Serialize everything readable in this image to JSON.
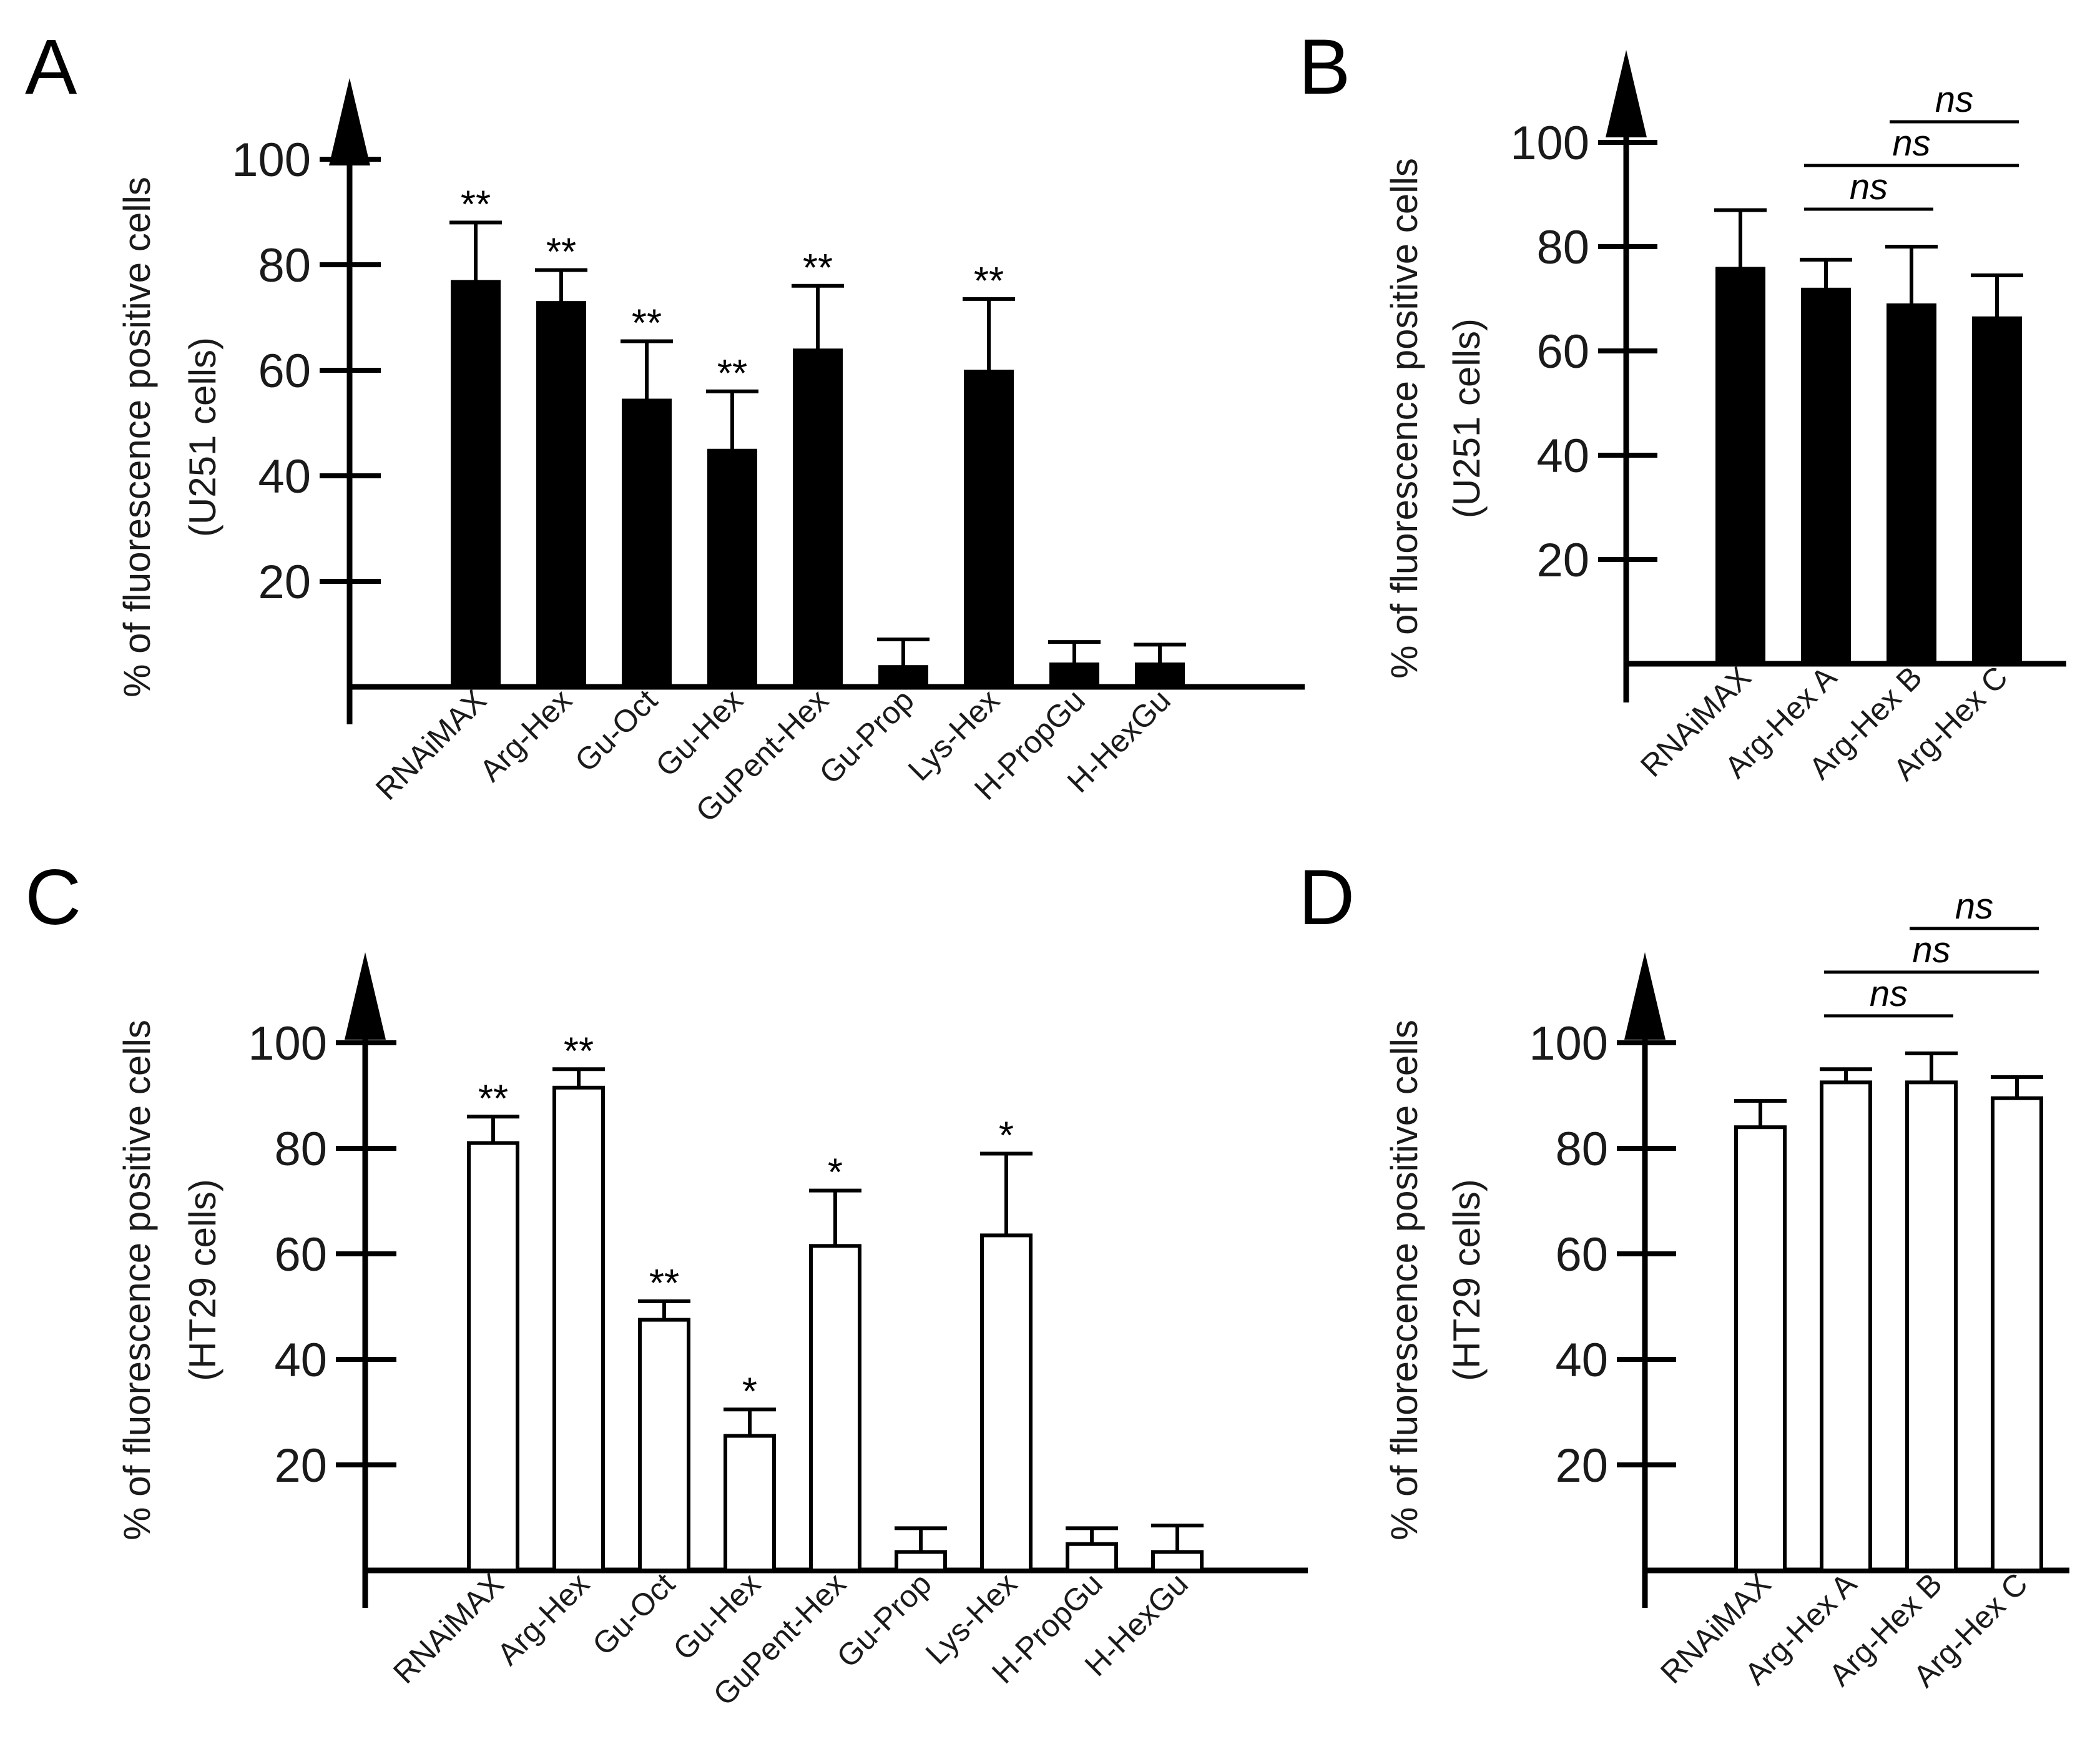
{
  "chart_data": [
    {
      "panel": "A",
      "type": "bar",
      "ylabel": [
        "% of fluorescence positive cells",
        "(U251 cells)"
      ],
      "yticks": [
        20,
        40,
        60,
        80,
        100
      ],
      "ylim": [
        0,
        100
      ],
      "fill": "#000000",
      "categories": [
        "RNAiMAX",
        "Arg-Hex",
        "Gu-Oct",
        "Gu-Hex",
        "GuPent-Hex",
        "Gu-Prop",
        "Lys-Hex",
        "H-PropGu",
        "H-HexGu"
      ],
      "values": [
        77,
        73,
        54.5,
        45,
        64,
        4,
        60,
        4.5,
        4.5
      ],
      "errors": [
        11,
        6,
        11,
        11,
        12,
        5,
        13.5,
        4,
        3.5
      ],
      "significance": [
        "**",
        "**",
        "**",
        "**",
        "**",
        "",
        "**",
        "",
        ""
      ]
    },
    {
      "panel": "B",
      "type": "bar",
      "ylabel": [
        "% of fluorescence positive cells",
        "(U251 cells)"
      ],
      "yticks": [
        20,
        40,
        60,
        80,
        100
      ],
      "ylim": [
        0,
        100
      ],
      "fill": "#000000",
      "categories": [
        "RNAiMAX",
        "Arg-Hex A",
        "Arg-Hex B",
        "Arg-Hex C"
      ],
      "values": [
        76,
        72,
        69,
        66.5
      ],
      "errors": [
        11,
        5.5,
        11,
        8
      ],
      "comparisons": [
        {
          "from": 2,
          "to": 3,
          "label": "ns"
        },
        {
          "from": 1,
          "to": 3,
          "label": "ns"
        },
        {
          "from": 1,
          "to": 2,
          "label": "ns"
        }
      ]
    },
    {
      "panel": "C",
      "type": "bar",
      "ylabel": [
        "% of fluorescence positive cells",
        "(HT29 cells)"
      ],
      "yticks": [
        20,
        40,
        60,
        80,
        100
      ],
      "ylim": [
        0,
        100
      ],
      "fill": "#ffffff",
      "categories": [
        "RNAiMAX",
        "Arg-Hex",
        "Gu-Oct",
        "Gu-Hex",
        "GuPent-Hex",
        "Gu-Prop",
        "Lys-Hex",
        "H-PropGu",
        "H-HexGu"
      ],
      "values": [
        81,
        91.5,
        47.5,
        25.5,
        61.5,
        3.5,
        63.5,
        5,
        3.5
      ],
      "errors": [
        5,
        3.5,
        3.5,
        5,
        10.5,
        4.5,
        15.5,
        3,
        5
      ],
      "significance": [
        "**",
        "**",
        "**",
        "*",
        "*",
        "",
        "*",
        "",
        ""
      ]
    },
    {
      "panel": "D",
      "type": "bar",
      "ylabel": [
        "% of fluorescence positive cells",
        "(HT29 cells)"
      ],
      "yticks": [
        20,
        40,
        60,
        80,
        100
      ],
      "ylim": [
        0,
        100
      ],
      "fill": "#ffffff",
      "categories": [
        "RNAiMAX",
        "Arg-Hex A",
        "Arg-Hex B",
        "Arg-Hex C"
      ],
      "values": [
        84,
        92.5,
        92.5,
        89.5
      ],
      "errors": [
        5,
        2.5,
        5.5,
        4
      ],
      "comparisons": [
        {
          "from": 2,
          "to": 3,
          "label": "ns"
        },
        {
          "from": 1,
          "to": 3,
          "label": "ns"
        },
        {
          "from": 1,
          "to": 2,
          "label": "ns"
        }
      ]
    }
  ]
}
